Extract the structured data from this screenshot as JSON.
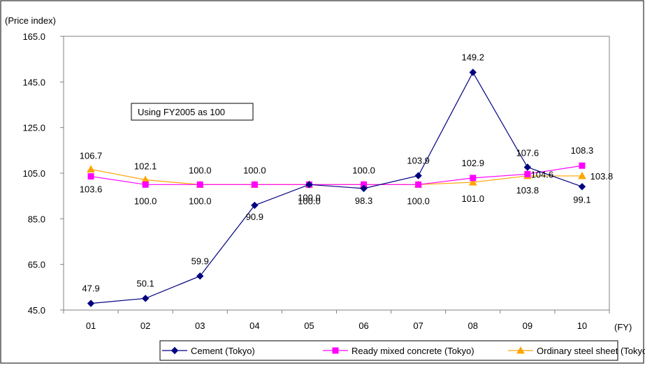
{
  "chart_data": {
    "type": "line",
    "y_unit_label": "(Price index)",
    "x_unit_label": "(FY)",
    "annotation": "Using FY2005 as 100",
    "categories": [
      "01",
      "02",
      "03",
      "04",
      "05",
      "06",
      "07",
      "08",
      "09",
      "10"
    ],
    "y_ticks": [
      "165.0",
      "145.0",
      "125.0",
      "105.0",
      "85.0",
      "65.0",
      "45.0"
    ],
    "ylim": [
      45,
      165
    ],
    "grid": false,
    "legend_position": "bottom",
    "series": [
      {
        "name": "Cement (Tokyo)",
        "color": "#000080",
        "marker": "diamond",
        "values": [
          47.9,
          50.1,
          59.9,
          90.9,
          100.0,
          98.3,
          103.9,
          149.2,
          107.6,
          99.1
        ],
        "labels": [
          "47.9",
          "50.1",
          "59.9",
          "90.9",
          "100.0",
          "98.3",
          "103.9",
          "149.2",
          "107.6",
          "99.1"
        ]
      },
      {
        "name": "Ready mixed concrete (Tokyo)",
        "color": "#FF00FF",
        "marker": "square",
        "values": [
          103.6,
          100.0,
          100.0,
          100.0,
          100.0,
          100.0,
          100.0,
          102.9,
          104.6,
          108.3
        ],
        "labels": [
          "103.6",
          "100.0",
          "100.0",
          "100.0",
          "100.0",
          "100.0",
          "100.0",
          "102.9",
          "104.6",
          "108.3"
        ]
      },
      {
        "name": "Ordinary steel sheet (Tokyo)",
        "color": "#FFA500",
        "marker": "triangle",
        "values": [
          106.7,
          102.1,
          100.0,
          100.0,
          100.0,
          100.0,
          100.0,
          101.0,
          103.8,
          103.8
        ],
        "labels": [
          "106.7",
          "102.1",
          "100.0",
          "100.0",
          "100.0",
          "100.0",
          "100.0",
          "101.0",
          "103.8",
          "103.8"
        ]
      }
    ]
  }
}
